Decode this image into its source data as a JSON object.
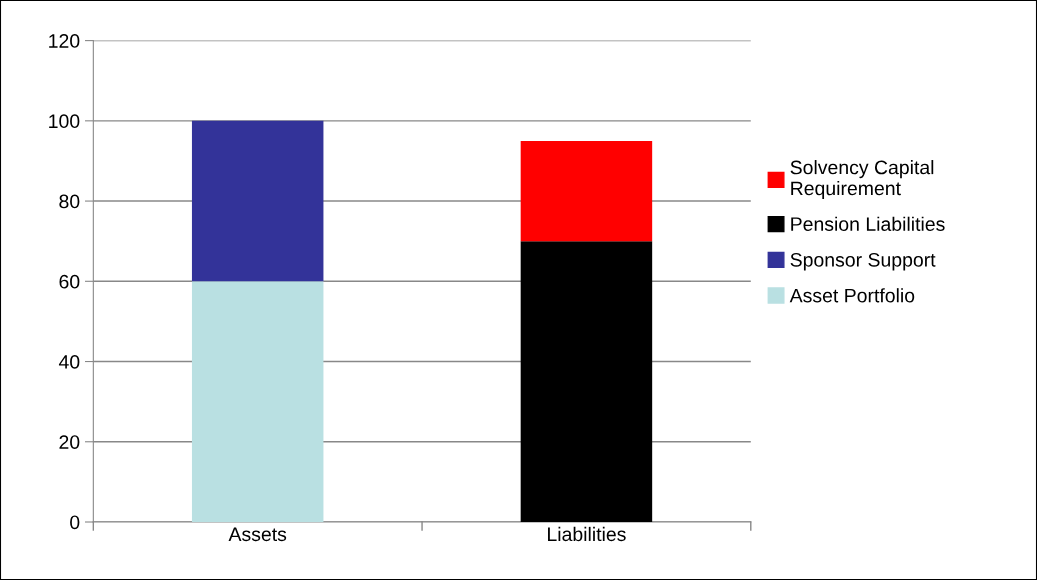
{
  "chart_data": {
    "type": "bar",
    "stacked": true,
    "categories": [
      "Assets",
      "Liabilities"
    ],
    "series": [
      {
        "name": "Asset Portfolio",
        "color": "#b9e0e2",
        "values": [
          60,
          null
        ]
      },
      {
        "name": "Sponsor Support",
        "color": "#333399",
        "values": [
          40,
          null
        ]
      },
      {
        "name": "Pension Liabilities",
        "color": "#000000",
        "values": [
          null,
          70
        ]
      },
      {
        "name": "Solvency Capital\nRequirement",
        "color": "#ff0000",
        "values": [
          null,
          25
        ]
      }
    ],
    "ylim": [
      0,
      120
    ],
    "yticks": [
      0,
      20,
      40,
      60,
      80,
      100,
      120
    ],
    "grid": "y",
    "legend": "right"
  }
}
